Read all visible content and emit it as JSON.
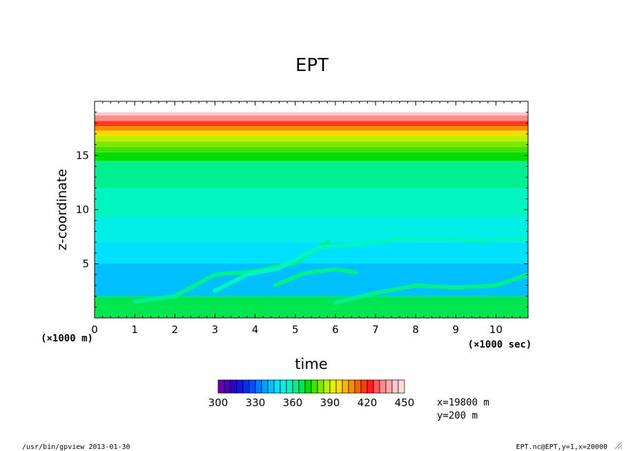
{
  "chart_data": {
    "type": "heatmap",
    "title": "EPT",
    "xlabel": "time",
    "ylabel": "z-coordinate",
    "x_unit_label": "(×1000 sec)",
    "y_unit_label": "(×1000 m)",
    "xlim": [
      0,
      10.8
    ],
    "ylim": [
      0,
      20
    ],
    "x_ticks": [
      "0",
      "1",
      "2",
      "3",
      "4",
      "5",
      "6",
      "7",
      "8",
      "9",
      "10"
    ],
    "y_ticks": [
      "5",
      "10",
      "15"
    ],
    "colorbar": {
      "min": 300,
      "max": 450,
      "step": 5,
      "tick_labels": [
        "300",
        "330",
        "360",
        "390",
        "420",
        "450"
      ]
    },
    "palette": [
      "#6a00a8",
      "#4b00bd",
      "#2d00d4",
      "#1414e6",
      "#0032f0",
      "#0050ff",
      "#0078ff",
      "#00a0ff",
      "#00c0ff",
      "#00e0ff",
      "#00f0e8",
      "#00f5c0",
      "#00f090",
      "#00e650",
      "#00dc00",
      "#44e000",
      "#80e800",
      "#b8f000",
      "#e6f000",
      "#ffdc00",
      "#ffb400",
      "#ff8c00",
      "#ff6400",
      "#ff3c14",
      "#ff1e1e",
      "#ff5a5a",
      "#ff8c8c",
      "#ffaaaa",
      "#ffc8c8",
      "#ffdcdc"
    ],
    "bands": [
      {
        "z": [
          0,
          2.0
        ],
        "value": 367
      },
      {
        "z": [
          2.0,
          5.0
        ],
        "value": 342
      },
      {
        "z": [
          5.0,
          7.0
        ],
        "value": 347
      },
      {
        "z": [
          7.0,
          9.3
        ],
        "value": 352
      },
      {
        "z": [
          9.3,
          12.0
        ],
        "value": 357
      },
      {
        "z": [
          12.0,
          14.5
        ],
        "value": 362
      },
      {
        "z": [
          14.5,
          15.3
        ],
        "value": 372
      },
      {
        "z": [
          15.3,
          15.8
        ],
        "value": 377
      },
      {
        "z": [
          15.8,
          16.3
        ],
        "value": 382
      },
      {
        "z": [
          16.3,
          16.8
        ],
        "value": 387
      },
      {
        "z": [
          16.8,
          17.3
        ],
        "value": 397
      },
      {
        "z": [
          17.3,
          17.7
        ],
        "value": 407
      },
      {
        "z": [
          17.7,
          18.2
        ],
        "value": 417
      },
      {
        "z": [
          18.2,
          18.7
        ],
        "value": 432
      },
      {
        "z": [
          18.7,
          19.0
        ],
        "value": 442
      }
    ],
    "plumes": [
      {
        "t": [
          1.0,
          2.0,
          3.0,
          4.0,
          5.0,
          5.8
        ],
        "z": [
          1.5,
          2.0,
          4.0,
          4.3,
          5.1,
          7.0
        ],
        "value": 362
      },
      {
        "t": [
          3.0,
          3.8,
          4.6,
          5.6,
          6.5,
          7.5,
          8.5,
          9.5,
          10.8
        ],
        "z": [
          2.5,
          4.0,
          4.6,
          6.5,
          6.8,
          7.2,
          7.3,
          7.1,
          7.3
        ],
        "value": 357
      },
      {
        "t": [
          4.5,
          5.2,
          6.0,
          6.5
        ],
        "z": [
          3.0,
          4.1,
          4.5,
          4.2
        ],
        "value": 362
      },
      {
        "t": [
          6.0,
          7.0,
          8.0,
          9.0,
          10.0,
          10.8
        ],
        "z": [
          1.4,
          2.3,
          3.0,
          2.8,
          3.0,
          4.0
        ],
        "value": 362
      }
    ]
  },
  "info": {
    "x_position": "x=19800  m",
    "y_position": "y=200  m"
  },
  "footer": {
    "left": "/usr/bin/gpview  2013-01-30",
    "right": "EPT.nc@EPT,y=1,x=20000"
  }
}
